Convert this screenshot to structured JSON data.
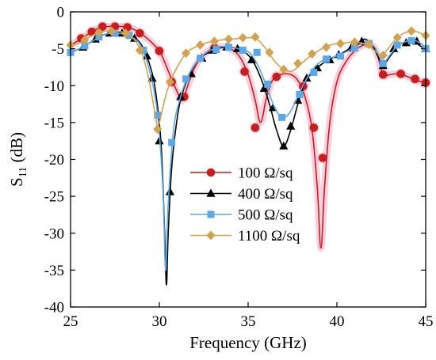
{
  "chart_data": {
    "type": "line",
    "xlabel": "Frequency (GHz)",
    "ylabel_main": "S",
    "ylabel_sub": "11",
    "ylabel_unit": " (dB)",
    "xlim": [
      25,
      45
    ],
    "ylim": [
      -40,
      0
    ],
    "xticks": [
      25,
      30,
      35,
      40,
      45
    ],
    "yticks": [
      0,
      -5,
      -10,
      -15,
      -20,
      -25,
      -30,
      -35,
      -40
    ],
    "grid": false,
    "legend_position": "center-left",
    "series": [
      {
        "name": "100 Ω/sq",
        "color": "#c81e1e",
        "glow": "#f7b6cc",
        "marker": "circle",
        "line_points": [
          [
            25,
            -4.5
          ],
          [
            25.5,
            -3.8
          ],
          [
            26,
            -3.0
          ],
          [
            26.5,
            -2.3
          ],
          [
            27,
            -2.0
          ],
          [
            27.5,
            -2.0
          ],
          [
            28,
            -2.0
          ],
          [
            28.5,
            -2.3
          ],
          [
            29,
            -3.0
          ],
          [
            29.5,
            -4.0
          ],
          [
            30,
            -5.3
          ],
          [
            30.3,
            -6.8
          ],
          [
            30.6,
            -8.6
          ],
          [
            31,
            -10.8
          ],
          [
            31.3,
            -12.0
          ],
          [
            31.6,
            -10.0
          ],
          [
            32,
            -7.5
          ],
          [
            32.5,
            -5.8
          ],
          [
            33,
            -5.0
          ],
          [
            33.5,
            -4.7
          ],
          [
            34,
            -5.0
          ],
          [
            34.5,
            -6.0
          ],
          [
            35,
            -8.5
          ],
          [
            35.4,
            -12.0
          ],
          [
            35.7,
            -15.0
          ],
          [
            36,
            -12.0
          ],
          [
            36.3,
            -9.6
          ],
          [
            36.6,
            -8.8
          ],
          [
            37,
            -8.4
          ],
          [
            37.4,
            -8.5
          ],
          [
            37.8,
            -9.3
          ],
          [
            38.2,
            -11.5
          ],
          [
            38.6,
            -16.0
          ],
          [
            38.9,
            -24.0
          ],
          [
            39.1,
            -32.0
          ],
          [
            39.3,
            -24.0
          ],
          [
            39.6,
            -15.0
          ],
          [
            40,
            -9.5
          ],
          [
            40.5,
            -6.8
          ],
          [
            41,
            -5.3
          ],
          [
            41.5,
            -4.5
          ],
          [
            42,
            -4.6
          ],
          [
            42.3,
            -6.0
          ],
          [
            42.6,
            -8.5
          ],
          [
            43,
            -8.5
          ],
          [
            43.5,
            -8.4
          ],
          [
            44,
            -8.8
          ],
          [
            44.5,
            -9.3
          ],
          [
            45,
            -9.6
          ]
        ],
        "marker_points": [
          [
            25.6,
            -3.6
          ],
          [
            26.2,
            -2.7
          ],
          [
            26.8,
            -2.0
          ],
          [
            27.5,
            -2.0
          ],
          [
            28.2,
            -2.1
          ],
          [
            28.9,
            -2.9
          ],
          [
            30,
            -5.3
          ],
          [
            30.7,
            -9.5
          ],
          [
            31.4,
            -11.5
          ],
          [
            33.1,
            -4.9
          ],
          [
            34.8,
            -8.1
          ],
          [
            35.4,
            -15.7
          ],
          [
            36.6,
            -8.8
          ],
          [
            38.1,
            -10.1
          ],
          [
            38.7,
            -15.7
          ],
          [
            39.2,
            -19.8
          ],
          [
            42.6,
            -8.5
          ],
          [
            43.6,
            -8.4
          ],
          [
            44.4,
            -9.1
          ],
          [
            45,
            -9.6
          ]
        ]
      },
      {
        "name": "400 Ω/sq",
        "color": "#000000",
        "glow": null,
        "marker": "triangle",
        "line_points": [
          [
            25,
            -5.5
          ],
          [
            25.5,
            -5.0
          ],
          [
            26,
            -4.3
          ],
          [
            26.5,
            -3.5
          ],
          [
            27,
            -3.0
          ],
          [
            27.5,
            -2.8
          ],
          [
            28,
            -2.9
          ],
          [
            28.5,
            -3.4
          ],
          [
            29,
            -4.5
          ],
          [
            29.5,
            -7.5
          ],
          [
            29.8,
            -11.0
          ],
          [
            30.1,
            -18.0
          ],
          [
            30.3,
            -30.0
          ],
          [
            30.4,
            -37.0
          ],
          [
            30.5,
            -30.0
          ],
          [
            30.7,
            -21.0
          ],
          [
            31,
            -14.5
          ],
          [
            31.3,
            -11.0
          ],
          [
            31.7,
            -8.5
          ],
          [
            32.2,
            -6.5
          ],
          [
            32.7,
            -5.6
          ],
          [
            33.2,
            -5.0
          ],
          [
            33.8,
            -4.8
          ],
          [
            34.3,
            -4.9
          ],
          [
            34.8,
            -5.4
          ],
          [
            35.3,
            -6.8
          ],
          [
            35.8,
            -9.5
          ],
          [
            36.2,
            -12.5
          ],
          [
            36.6,
            -16.0
          ],
          [
            37,
            -18.2
          ],
          [
            37.4,
            -16.0
          ],
          [
            37.8,
            -12.5
          ],
          [
            38.2,
            -9.6
          ],
          [
            38.7,
            -8.0
          ],
          [
            39.2,
            -7.0
          ],
          [
            39.7,
            -6.3
          ],
          [
            40.2,
            -5.7
          ],
          [
            40.7,
            -5.0
          ],
          [
            41.2,
            -4.2
          ],
          [
            41.6,
            -3.7
          ],
          [
            42,
            -4.6
          ],
          [
            42.3,
            -6.0
          ],
          [
            42.6,
            -7.2
          ],
          [
            43,
            -6.0
          ],
          [
            43.5,
            -4.5
          ],
          [
            44,
            -4.0
          ],
          [
            44.5,
            -4.3
          ],
          [
            45,
            -5.2
          ]
        ],
        "marker_points": [
          [
            25.7,
            -4.8
          ],
          [
            26.4,
            -3.7
          ],
          [
            27.2,
            -2.9
          ],
          [
            27.9,
            -2.9
          ],
          [
            28.6,
            -3.6
          ],
          [
            29.3,
            -6.0
          ],
          [
            29.6,
            -9.0
          ],
          [
            30,
            -17.5
          ],
          [
            30.6,
            -24.4
          ],
          [
            31.2,
            -11.5
          ],
          [
            31.8,
            -8.4
          ],
          [
            32.4,
            -6.3
          ],
          [
            33,
            -5.2
          ],
          [
            33.8,
            -4.8
          ],
          [
            34.4,
            -5.0
          ],
          [
            35.2,
            -6.5
          ],
          [
            35.9,
            -10.4
          ],
          [
            36.4,
            -13.0
          ],
          [
            37,
            -18.2
          ],
          [
            37.4,
            -15.5
          ],
          [
            37.8,
            -12.0
          ],
          [
            38.3,
            -9.0
          ],
          [
            38.9,
            -7.6
          ],
          [
            39.6,
            -6.5
          ],
          [
            40.1,
            -5.8
          ],
          [
            40.8,
            -4.9
          ],
          [
            41.4,
            -4.0
          ],
          [
            42.6,
            -7.3
          ],
          [
            43.2,
            -5.0
          ],
          [
            43.9,
            -4.2
          ],
          [
            44.5,
            -4.0
          ],
          [
            45,
            -5.0
          ]
        ]
      },
      {
        "name": "500 Ω/sq",
        "color": "#5aa8e6",
        "glow": null,
        "marker": "square",
        "line_points": [
          [
            25,
            -5.5
          ],
          [
            25.5,
            -5.0
          ],
          [
            26,
            -4.3
          ],
          [
            26.5,
            -3.6
          ],
          [
            27,
            -3.0
          ],
          [
            27.5,
            -2.9
          ],
          [
            28,
            -3.0
          ],
          [
            28.5,
            -3.5
          ],
          [
            29,
            -4.8
          ],
          [
            29.5,
            -8.5
          ],
          [
            29.9,
            -14.0
          ],
          [
            30.2,
            -24.0
          ],
          [
            30.35,
            -35.0
          ],
          [
            30.5,
            -26.0
          ],
          [
            30.8,
            -16.0
          ],
          [
            31.2,
            -11.5
          ],
          [
            31.6,
            -8.8
          ],
          [
            32.1,
            -6.8
          ],
          [
            32.6,
            -5.6
          ],
          [
            33.1,
            -5.0
          ],
          [
            33.6,
            -4.7
          ],
          [
            34.1,
            -4.8
          ],
          [
            34.6,
            -5.1
          ],
          [
            35.1,
            -5.6
          ],
          [
            35.6,
            -7.5
          ],
          [
            36.1,
            -10.5
          ],
          [
            36.5,
            -13.0
          ],
          [
            36.9,
            -14.3
          ],
          [
            37.3,
            -13.8
          ],
          [
            37.7,
            -12.0
          ],
          [
            38.2,
            -9.5
          ],
          [
            38.7,
            -7.6
          ],
          [
            39.2,
            -6.6
          ],
          [
            39.7,
            -6.2
          ],
          [
            40.2,
            -5.8
          ],
          [
            40.7,
            -5.2
          ],
          [
            41.2,
            -4.5
          ],
          [
            41.7,
            -4.2
          ],
          [
            42.1,
            -4.7
          ],
          [
            42.4,
            -6.0
          ],
          [
            42.6,
            -7.0
          ],
          [
            43,
            -5.8
          ],
          [
            43.4,
            -4.6
          ],
          [
            43.9,
            -4.0
          ],
          [
            44.4,
            -3.9
          ],
          [
            44.8,
            -4.4
          ],
          [
            45,
            -5.0
          ]
        ],
        "marker_points": [
          [
            25,
            -5.5
          ],
          [
            25.8,
            -4.6
          ],
          [
            26.6,
            -3.4
          ],
          [
            27.5,
            -2.9
          ],
          [
            28.3,
            -3.2
          ],
          [
            29.1,
            -5.2
          ],
          [
            29.9,
            -14.0
          ],
          [
            30.7,
            -17.7
          ],
          [
            31.5,
            -9.1
          ],
          [
            32.3,
            -6.3
          ],
          [
            33.2,
            -5.1
          ],
          [
            33.9,
            -4.8
          ],
          [
            34.7,
            -5.2
          ],
          [
            35.5,
            -5.5
          ],
          [
            36.1,
            -9.8
          ],
          [
            36.9,
            -14.3
          ],
          [
            37.9,
            -11.2
          ],
          [
            38.7,
            -8.2
          ],
          [
            39.4,
            -6.4
          ],
          [
            40.2,
            -6.0
          ],
          [
            41,
            -4.9
          ],
          [
            41.8,
            -4.3
          ],
          [
            42.6,
            -7.0
          ],
          [
            43.4,
            -4.5
          ],
          [
            44.2,
            -3.9
          ],
          [
            45,
            -5.0
          ]
        ]
      },
      {
        "name": "1100 Ω/sq",
        "color": "#d2a24e",
        "glow": null,
        "marker": "diamond",
        "line_points": [
          [
            25,
            -4.5
          ],
          [
            25.5,
            -4.2
          ],
          [
            26,
            -3.5
          ],
          [
            26.5,
            -2.9
          ],
          [
            27,
            -2.6
          ],
          [
            27.5,
            -2.6
          ],
          [
            28,
            -2.8
          ],
          [
            28.5,
            -3.5
          ],
          [
            29,
            -5.5
          ],
          [
            29.4,
            -9.0
          ],
          [
            29.7,
            -13.0
          ],
          [
            29.9,
            -15.5
          ],
          [
            30.1,
            -14.0
          ],
          [
            30.4,
            -11.0
          ],
          [
            30.7,
            -9.0
          ],
          [
            31,
            -7.5
          ],
          [
            31.5,
            -5.6
          ],
          [
            32,
            -4.8
          ],
          [
            32.5,
            -4.3
          ],
          [
            33,
            -4.0
          ],
          [
            33.5,
            -3.8
          ],
          [
            34,
            -3.7
          ],
          [
            34.5,
            -3.6
          ],
          [
            35,
            -3.5
          ],
          [
            35.5,
            -3.7
          ],
          [
            36,
            -5.0
          ],
          [
            36.5,
            -6.7
          ],
          [
            37,
            -7.8
          ],
          [
            37.5,
            -8.0
          ],
          [
            38,
            -7.0
          ],
          [
            38.5,
            -6.0
          ],
          [
            39,
            -5.2
          ],
          [
            39.5,
            -4.6
          ],
          [
            40,
            -4.3
          ],
          [
            40.5,
            -4.2
          ],
          [
            41,
            -4.1
          ],
          [
            41.5,
            -4.3
          ],
          [
            42,
            -5.0
          ],
          [
            42.4,
            -5.8
          ],
          [
            42.6,
            -5.8
          ],
          [
            43,
            -4.6
          ],
          [
            43.5,
            -3.3
          ],
          [
            44,
            -2.7
          ],
          [
            44.5,
            -2.7
          ],
          [
            45,
            -3.3
          ]
        ],
        "marker_points": [
          [
            25,
            -4.5
          ],
          [
            25.8,
            -3.8
          ],
          [
            26.6,
            -2.8
          ],
          [
            27.3,
            -2.6
          ],
          [
            28.1,
            -2.9
          ],
          [
            28.9,
            -5.2
          ],
          [
            29.9,
            -15.9
          ],
          [
            30.6,
            -9.5
          ],
          [
            31.5,
            -5.6
          ],
          [
            32.3,
            -4.5
          ],
          [
            33.1,
            -4.0
          ],
          [
            33.9,
            -3.7
          ],
          [
            34.7,
            -3.5
          ],
          [
            35.4,
            -3.4
          ],
          [
            36.2,
            -5.5
          ],
          [
            37,
            -7.8
          ],
          [
            37.8,
            -7.0
          ],
          [
            38.6,
            -5.7
          ],
          [
            39.4,
            -4.8
          ],
          [
            40.2,
            -4.3
          ],
          [
            41,
            -4.1
          ],
          [
            41.8,
            -4.4
          ],
          [
            42.6,
            -5.9
          ],
          [
            43.4,
            -3.5
          ],
          [
            44.2,
            -2.6
          ],
          [
            45,
            -3.2
          ]
        ]
      }
    ]
  }
}
